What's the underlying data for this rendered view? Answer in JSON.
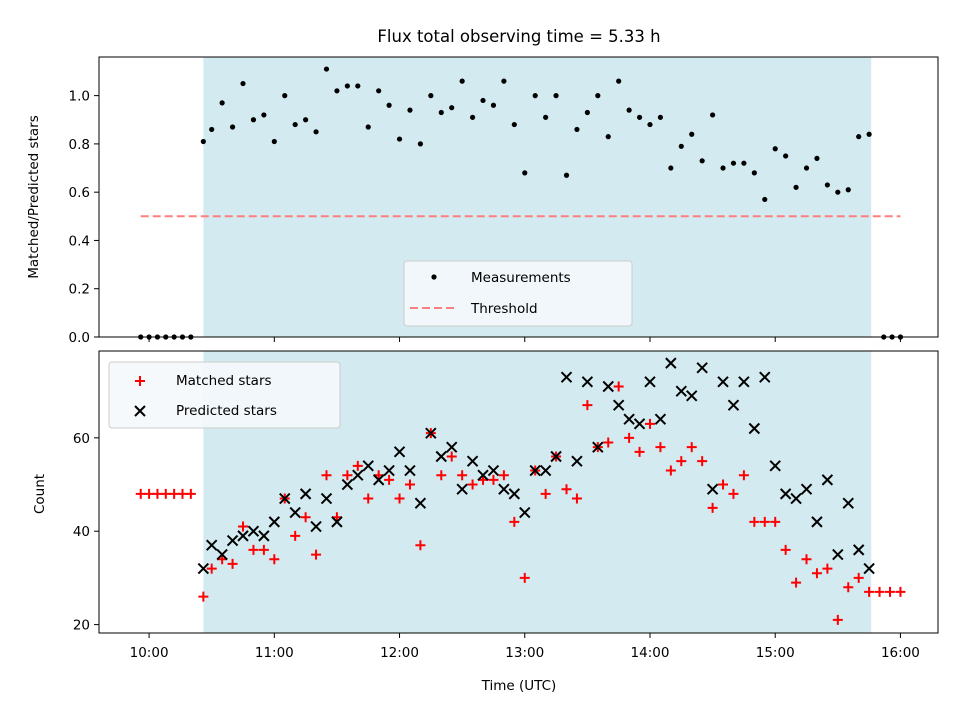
{
  "chart_data": [
    {
      "type": "scatter",
      "title": "Flux total observing time = 5.33 h",
      "xlabel": "",
      "ylabel": "Matched/Predicted stars",
      "xlim": [
        "09:36",
        "16:18"
      ],
      "ylim": [
        0,
        1.16
      ],
      "yticks": [
        0,
        0.2,
        0.4,
        0.6,
        0.8,
        1.0
      ],
      "ytick_labels": [
        "0.0",
        "0.2",
        "0.4",
        "0.6",
        "0.8",
        "1.0"
      ],
      "observing_window": [
        "10:26",
        "15:46"
      ],
      "observing_window_color": "#d3eaf0",
      "legend_position": "lower center",
      "series": [
        {
          "name": "Measurements",
          "kind": "dots",
          "color": "#000000",
          "points": [
            [
              "09:56",
              0.0
            ],
            [
              "10:00",
              0.0
            ],
            [
              "10:04",
              0.0
            ],
            [
              "10:08",
              0.0
            ],
            [
              "10:12",
              0.0
            ],
            [
              "10:16",
              0.0
            ],
            [
              "10:20",
              0.0
            ],
            [
              "10:26",
              0.81
            ],
            [
              "10:30",
              0.86
            ],
            [
              "10:35",
              0.97
            ],
            [
              "10:40",
              0.87
            ],
            [
              "10:45",
              1.05
            ],
            [
              "10:50",
              0.9
            ],
            [
              "10:55",
              0.92
            ],
            [
              "11:00",
              0.81
            ],
            [
              "11:05",
              1.0
            ],
            [
              "11:10",
              0.88
            ],
            [
              "11:15",
              0.9
            ],
            [
              "11:20",
              0.85
            ],
            [
              "11:25",
              1.11
            ],
            [
              "11:30",
              1.02
            ],
            [
              "11:35",
              1.04
            ],
            [
              "11:40",
              1.04
            ],
            [
              "11:45",
              0.87
            ],
            [
              "11:50",
              1.02
            ],
            [
              "11:55",
              0.96
            ],
            [
              "12:00",
              0.82
            ],
            [
              "12:05",
              0.94
            ],
            [
              "12:10",
              0.8
            ],
            [
              "12:15",
              1.0
            ],
            [
              "12:20",
              0.93
            ],
            [
              "12:25",
              0.95
            ],
            [
              "12:30",
              1.06
            ],
            [
              "12:35",
              0.91
            ],
            [
              "12:40",
              0.98
            ],
            [
              "12:45",
              0.96
            ],
            [
              "12:50",
              1.06
            ],
            [
              "12:55",
              0.88
            ],
            [
              "13:00",
              0.68
            ],
            [
              "13:05",
              1.0
            ],
            [
              "13:10",
              0.91
            ],
            [
              "13:15",
              1.0
            ],
            [
              "13:20",
              0.67
            ],
            [
              "13:25",
              0.86
            ],
            [
              "13:30",
              0.93
            ],
            [
              "13:35",
              1.0
            ],
            [
              "13:40",
              0.83
            ],
            [
              "13:45",
              1.06
            ],
            [
              "13:50",
              0.94
            ],
            [
              "13:55",
              0.91
            ],
            [
              "14:00",
              0.88
            ],
            [
              "14:05",
              0.91
            ],
            [
              "14:10",
              0.7
            ],
            [
              "14:15",
              0.79
            ],
            [
              "14:20",
              0.84
            ],
            [
              "14:25",
              0.73
            ],
            [
              "14:30",
              0.92
            ],
            [
              "14:35",
              0.7
            ],
            [
              "14:40",
              0.72
            ],
            [
              "14:45",
              0.72
            ],
            [
              "14:50",
              0.68
            ],
            [
              "14:55",
              0.57
            ],
            [
              "15:00",
              0.78
            ],
            [
              "15:05",
              0.75
            ],
            [
              "15:10",
              0.62
            ],
            [
              "15:15",
              0.7
            ],
            [
              "15:20",
              0.74
            ],
            [
              "15:25",
              0.63
            ],
            [
              "15:30",
              0.6
            ],
            [
              "15:35",
              0.61
            ],
            [
              "15:40",
              0.83
            ],
            [
              "15:45",
              0.84
            ],
            [
              "15:52",
              0.0
            ],
            [
              "15:56",
              0.0
            ],
            [
              "16:00",
              0.0
            ]
          ]
        },
        {
          "name": "Threshold",
          "kind": "dashed-line",
          "color": "#ff7f7f",
          "points": [
            [
              "09:56",
              0.5
            ],
            [
              "16:00",
              0.5
            ]
          ]
        }
      ]
    },
    {
      "type": "scatter",
      "title": "",
      "xlabel": "Time (UTC)",
      "ylabel": "Count",
      "xlim": [
        "09:36",
        "16:18"
      ],
      "ylim": [
        18.2,
        78.6
      ],
      "yticks": [
        20,
        40,
        60
      ],
      "ytick_labels": [
        "20",
        "40",
        "60"
      ],
      "xticks": [
        "10:00",
        "11:00",
        "12:00",
        "13:00",
        "14:00",
        "15:00",
        "16:00"
      ],
      "xtick_labels": [
        "10:00",
        "11:00",
        "12:00",
        "13:00",
        "14:00",
        "15:00",
        "16:00"
      ],
      "observing_window": [
        "10:26",
        "15:46"
      ],
      "observing_window_color": "#d3eaf0",
      "legend_position": "upper left",
      "series": [
        {
          "name": "Matched stars",
          "marker": "plus",
          "color": "#ff0000",
          "points": [
            [
              "09:56",
              48
            ],
            [
              "10:00",
              48
            ],
            [
              "10:04",
              48
            ],
            [
              "10:08",
              48
            ],
            [
              "10:12",
              48
            ],
            [
              "10:16",
              48
            ],
            [
              "10:20",
              48
            ],
            [
              "10:26",
              26
            ],
            [
              "10:30",
              32
            ],
            [
              "10:35",
              34
            ],
            [
              "10:40",
              33
            ],
            [
              "10:45",
              41
            ],
            [
              "10:50",
              36
            ],
            [
              "10:55",
              36
            ],
            [
              "11:00",
              34
            ],
            [
              "11:05",
              47
            ],
            [
              "11:10",
              39
            ],
            [
              "11:15",
              43
            ],
            [
              "11:20",
              35
            ],
            [
              "11:25",
              52
            ],
            [
              "11:30",
              43
            ],
            [
              "11:35",
              52
            ],
            [
              "11:40",
              54
            ],
            [
              "11:45",
              47
            ],
            [
              "11:50",
              52
            ],
            [
              "11:55",
              51
            ],
            [
              "12:00",
              47
            ],
            [
              "12:05",
              50
            ],
            [
              "12:10",
              37
            ],
            [
              "12:15",
              61
            ],
            [
              "12:20",
              52
            ],
            [
              "12:25",
              56
            ],
            [
              "12:30",
              52
            ],
            [
              "12:35",
              50
            ],
            [
              "12:40",
              51
            ],
            [
              "12:45",
              51
            ],
            [
              "12:50",
              52
            ],
            [
              "12:55",
              42
            ],
            [
              "13:00",
              30
            ],
            [
              "13:05",
              53
            ],
            [
              "13:10",
              48
            ],
            [
              "13:15",
              56
            ],
            [
              "13:20",
              49
            ],
            [
              "13:25",
              47
            ],
            [
              "13:30",
              67
            ],
            [
              "13:35",
              58
            ],
            [
              "13:40",
              59
            ],
            [
              "13:45",
              71
            ],
            [
              "13:50",
              60
            ],
            [
              "13:55",
              57
            ],
            [
              "14:00",
              63
            ],
            [
              "14:05",
              58
            ],
            [
              "14:10",
              53
            ],
            [
              "14:15",
              55
            ],
            [
              "14:20",
              58
            ],
            [
              "14:25",
              55
            ],
            [
              "14:30",
              45
            ],
            [
              "14:35",
              50
            ],
            [
              "14:40",
              48
            ],
            [
              "14:45",
              52
            ],
            [
              "14:50",
              42
            ],
            [
              "14:55",
              42
            ],
            [
              "15:00",
              42
            ],
            [
              "15:05",
              36
            ],
            [
              "15:10",
              29
            ],
            [
              "15:15",
              34
            ],
            [
              "15:20",
              31
            ],
            [
              "15:25",
              32
            ],
            [
              "15:30",
              21
            ],
            [
              "15:35",
              28
            ],
            [
              "15:40",
              30
            ],
            [
              "15:45",
              27
            ],
            [
              "15:50",
              27
            ],
            [
              "15:55",
              27
            ],
            [
              "16:00",
              27
            ]
          ]
        },
        {
          "name": "Predicted stars",
          "marker": "x",
          "color": "#000000",
          "points": [
            [
              "10:26",
              32
            ],
            [
              "10:30",
              37
            ],
            [
              "10:35",
              35
            ],
            [
              "10:40",
              38
            ],
            [
              "10:45",
              39
            ],
            [
              "10:50",
              40
            ],
            [
              "10:55",
              39
            ],
            [
              "11:00",
              42
            ],
            [
              "11:05",
              47
            ],
            [
              "11:10",
              44
            ],
            [
              "11:15",
              48
            ],
            [
              "11:20",
              41
            ],
            [
              "11:25",
              47
            ],
            [
              "11:30",
              42
            ],
            [
              "11:35",
              50
            ],
            [
              "11:40",
              52
            ],
            [
              "11:45",
              54
            ],
            [
              "11:50",
              51
            ],
            [
              "11:55",
              53
            ],
            [
              "12:00",
              57
            ],
            [
              "12:05",
              53
            ],
            [
              "12:10",
              46
            ],
            [
              "12:15",
              61
            ],
            [
              "12:20",
              56
            ],
            [
              "12:25",
              58
            ],
            [
              "12:30",
              49
            ],
            [
              "12:35",
              55
            ],
            [
              "12:40",
              52
            ],
            [
              "12:45",
              53
            ],
            [
              "12:50",
              49
            ],
            [
              "12:55",
              48
            ],
            [
              "13:00",
              44
            ],
            [
              "13:05",
              53
            ],
            [
              "13:10",
              53
            ],
            [
              "13:15",
              56
            ],
            [
              "13:20",
              73
            ],
            [
              "13:25",
              55
            ],
            [
              "13:30",
              72
            ],
            [
              "13:35",
              58
            ],
            [
              "13:40",
              71
            ],
            [
              "13:45",
              67
            ],
            [
              "13:50",
              64
            ],
            [
              "13:55",
              63
            ],
            [
              "14:00",
              72
            ],
            [
              "14:05",
              64
            ],
            [
              "14:10",
              76
            ],
            [
              "14:15",
              70
            ],
            [
              "14:20",
              69
            ],
            [
              "14:25",
              75
            ],
            [
              "14:30",
              49
            ],
            [
              "14:35",
              72
            ],
            [
              "14:40",
              67
            ],
            [
              "14:45",
              72
            ],
            [
              "14:50",
              62
            ],
            [
              "14:55",
              73
            ],
            [
              "15:00",
              54
            ],
            [
              "15:05",
              48
            ],
            [
              "15:10",
              47
            ],
            [
              "15:15",
              49
            ],
            [
              "15:20",
              42
            ],
            [
              "15:25",
              51
            ],
            [
              "15:30",
              35
            ],
            [
              "15:35",
              46
            ],
            [
              "15:40",
              36
            ],
            [
              "15:45",
              32
            ]
          ]
        }
      ]
    }
  ]
}
